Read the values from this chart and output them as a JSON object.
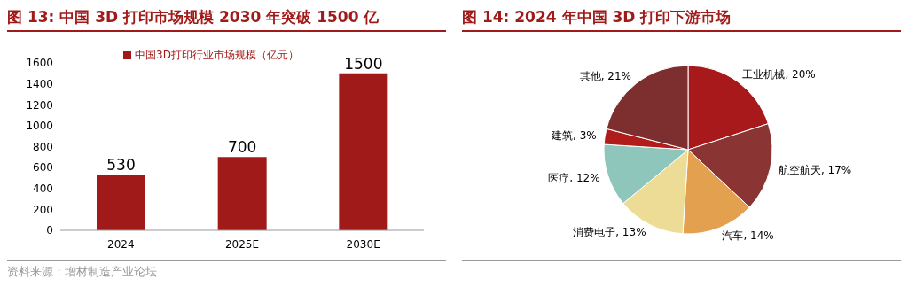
{
  "chart_data": [
    {
      "type": "bar",
      "title": "图 13:  中国 3D 打印市场规模 2030 年突破 1500 亿",
      "categories": [
        "2024",
        "2025E",
        "2030E"
      ],
      "series": [
        {
          "name": "中国3D打印行业市场规模（亿元）",
          "color": "#a11a1a",
          "values": [
            530,
            700,
            1500
          ]
        }
      ],
      "ylim": [
        0,
        1600
      ],
      "yticks": [
        0,
        200,
        400,
        600,
        800,
        1000,
        1200,
        1400,
        1600
      ],
      "grid": false,
      "legend": "top",
      "data_labels": true,
      "annotations": [
        "资料来源：增材制造产业论坛"
      ]
    },
    {
      "type": "pie",
      "title": "图 14:  2024 年中国 3D 打印下游市场",
      "categories": [
        "工业机械",
        "航空航天",
        "汽车",
        "消费电子",
        "医疗",
        "建筑",
        "其他"
      ],
      "values": [
        20,
        17,
        14,
        13,
        12,
        3,
        21
      ],
      "value_labels": [
        "20%",
        "17%",
        "14%",
        "13%",
        "12%",
        "3%",
        "21%"
      ],
      "colors": [
        "#a8191c",
        "#8b3434",
        "#e3a04f",
        "#ecdc96",
        "#8ec6bb",
        "#b01c1c",
        "#7d2e2e"
      ],
      "legend": false
    }
  ]
}
